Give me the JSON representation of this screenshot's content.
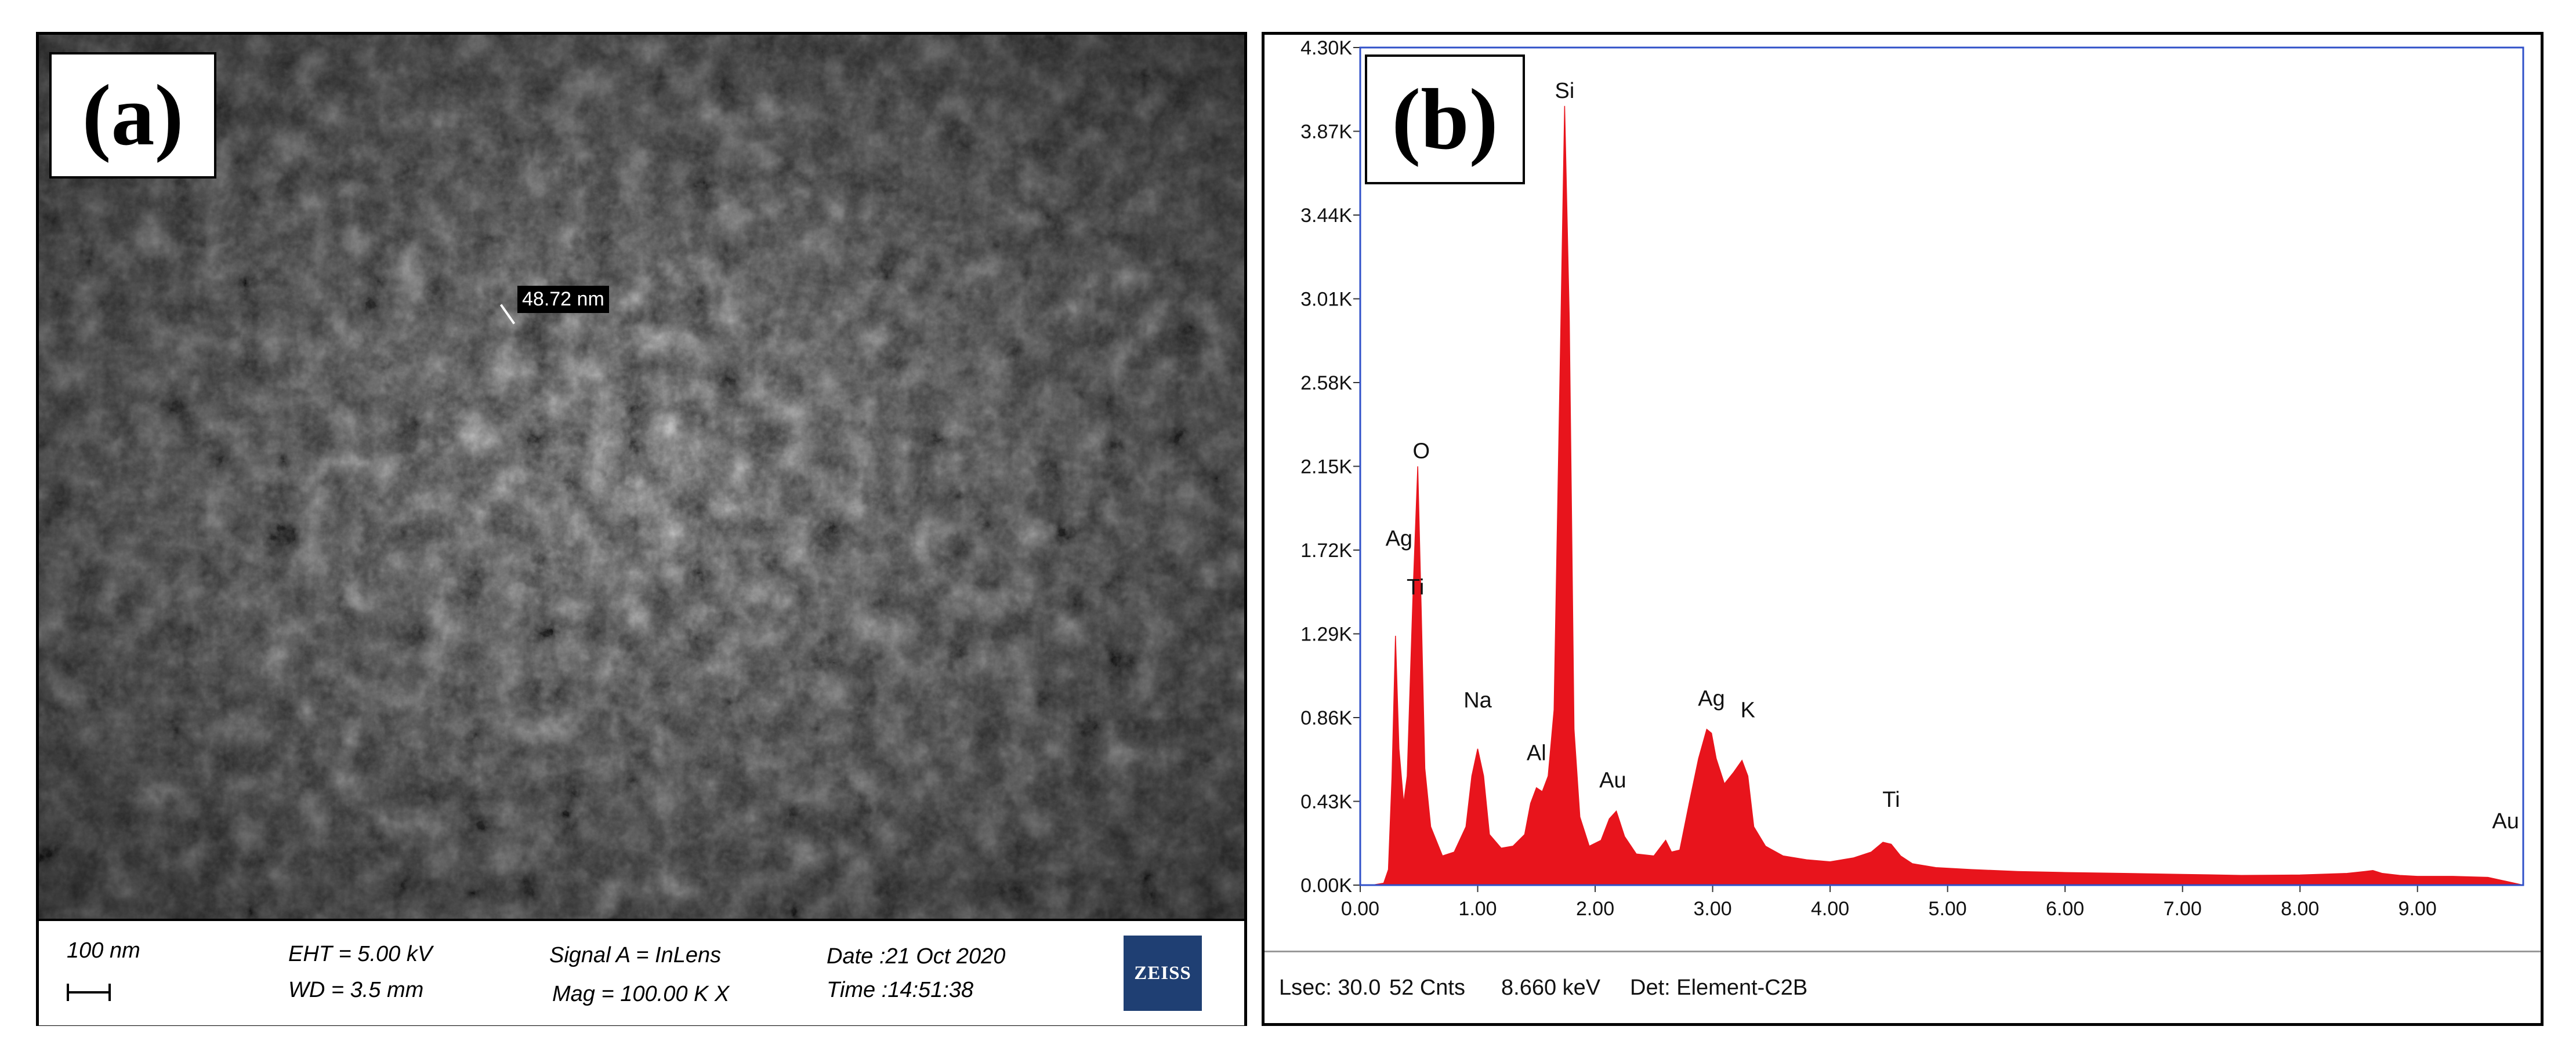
{
  "panel_a": {
    "label": "(a)",
    "measurement": "48.72 nm",
    "scale_bar": "100 nm",
    "eht": "EHT =  5.00 kV",
    "wd": "WD =  3.5 mm",
    "signal": "Signal A = InLens",
    "mag": "Mag =  100.00 K X",
    "date": "Date :21 Oct 2020",
    "time": "Time :14:51:38",
    "logo": "ZEISS"
  },
  "panel_b": {
    "label": "(b)",
    "footer": {
      "lsec": "Lsec: 30.0",
      "cnts": "52 Cnts",
      "kev": "8.660 keV",
      "det": "Det: Element-C2B"
    }
  },
  "chart_data": {
    "type": "area",
    "title": "",
    "xlabel": "",
    "ylabel": "",
    "xlim": [
      0,
      9.9
    ],
    "ylim": [
      0,
      4300
    ],
    "x_ticks": [
      "0.00",
      "1.00",
      "2.00",
      "3.00",
      "4.00",
      "5.00",
      "6.00",
      "7.00",
      "8.00",
      "9.00"
    ],
    "y_ticks": [
      "0.00K",
      "0.43K",
      "0.86K",
      "1.29K",
      "1.72K",
      "2.15K",
      "2.58K",
      "3.01K",
      "3.44K",
      "3.87K",
      "4.30K"
    ],
    "grid": false,
    "series": [
      {
        "color": "#e8141c",
        "x": [
          0.1,
          0.2,
          0.24,
          0.27,
          0.3,
          0.33,
          0.37,
          0.4,
          0.45,
          0.49,
          0.52,
          0.55,
          0.6,
          0.7,
          0.8,
          0.9,
          0.95,
          1.0,
          1.05,
          1.1,
          1.2,
          1.3,
          1.4,
          1.45,
          1.5,
          1.55,
          1.6,
          1.65,
          1.7,
          1.74,
          1.78,
          1.82,
          1.87,
          1.95,
          2.05,
          2.12,
          2.18,
          2.25,
          2.35,
          2.5,
          2.6,
          2.65,
          2.72,
          2.8,
          2.88,
          2.95,
          2.99,
          3.03,
          3.1,
          3.18,
          3.25,
          3.3,
          3.35,
          3.45,
          3.6,
          3.8,
          4.0,
          4.2,
          4.35,
          4.45,
          4.52,
          4.6,
          4.7,
          4.9,
          5.2,
          5.6,
          6.0,
          6.5,
          7.0,
          7.5,
          8.0,
          8.4,
          8.55,
          8.62,
          8.7,
          8.85,
          9.0,
          9.3,
          9.6,
          9.9
        ],
        "y": [
          0,
          10,
          80,
          550,
          1280,
          700,
          420,
          560,
          1500,
          2150,
          1400,
          600,
          300,
          150,
          170,
          300,
          560,
          700,
          560,
          260,
          190,
          200,
          260,
          420,
          500,
          480,
          560,
          900,
          2600,
          4000,
          2900,
          800,
          350,
          200,
          230,
          340,
          380,
          250,
          160,
          150,
          230,
          170,
          180,
          420,
          650,
          800,
          780,
          650,
          520,
          580,
          640,
          560,
          300,
          200,
          150,
          130,
          120,
          140,
          170,
          220,
          210,
          150,
          110,
          90,
          80,
          70,
          65,
          60,
          55,
          50,
          52,
          60,
          70,
          75,
          60,
          50,
          45,
          45,
          40,
          0
        ]
      }
    ],
    "annotations": [
      {
        "text": "Si",
        "x": 1.74,
        "y": 4000
      },
      {
        "text": "O",
        "x": 0.52,
        "y": 2150
      },
      {
        "text": "Ag",
        "x": 0.33,
        "y": 1700
      },
      {
        "text": "Ti",
        "x": 0.47,
        "y": 1450
      },
      {
        "text": "Na",
        "x": 1.0,
        "y": 870
      },
      {
        "text": "Al",
        "x": 1.5,
        "y": 600
      },
      {
        "text": "Au",
        "x": 2.15,
        "y": 460
      },
      {
        "text": "Ag",
        "x": 2.99,
        "y": 880
      },
      {
        "text": "K",
        "x": 3.3,
        "y": 820
      },
      {
        "text": "Ti",
        "x": 4.52,
        "y": 360
      },
      {
        "text": "Au",
        "x": 9.75,
        "y": 250
      }
    ]
  }
}
